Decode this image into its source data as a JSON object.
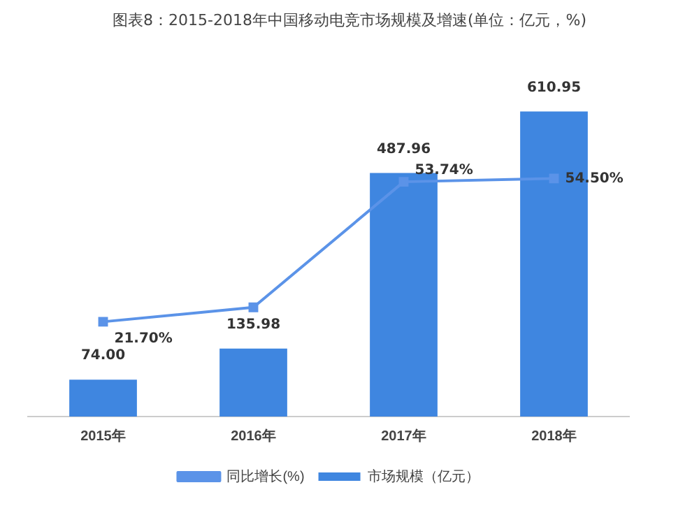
{
  "chart_data": {
    "type": "bar",
    "title": "图表8：2015-2018年中国移动电竞市场规模及增速(单位：亿元，%)",
    "categories": [
      "2015年",
      "2016年",
      "2017年",
      "2018年"
    ],
    "series": [
      {
        "name": "市场规模（亿元）",
        "color": "#3f86e0",
        "values": [
          74.0,
          135.98,
          487.96,
          610.95
        ],
        "value_labels": [
          "74.00",
          "135.98",
          "487.96",
          "610.95"
        ]
      },
      {
        "name": "同比增长(%)",
        "type": "line",
        "axis": "y2",
        "color": "#5b93e8",
        "values": [
          21.7,
          25,
          53.74,
          54.5
        ],
        "value_labels": [
          "21.70%",
          null,
          "53.74%",
          "54.50%"
        ]
      }
    ],
    "legend": "bottom",
    "grid": false,
    "tick_labels": "x",
    "marker": "square",
    "line_style": "solid"
  }
}
